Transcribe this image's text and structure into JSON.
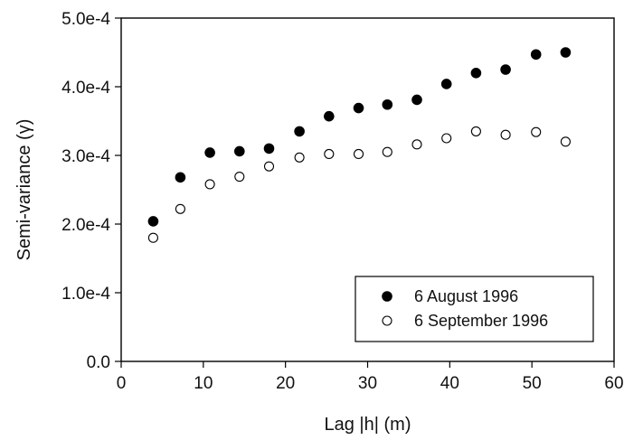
{
  "chart_data": {
    "type": "scatter",
    "title": "",
    "xlabel": "Lag |h| (m)",
    "ylabel": "Semi-variance (γ)",
    "xlim": [
      0,
      60
    ],
    "ylim": [
      0,
      0.0005
    ],
    "x_ticks": [
      0,
      10,
      20,
      30,
      40,
      50,
      60
    ],
    "x_tick_labels": [
      "0",
      "10",
      "20",
      "30",
      "40",
      "50",
      "60"
    ],
    "y_ticks": [
      0,
      0.0001,
      0.0002,
      0.0003,
      0.0004,
      0.0005
    ],
    "y_tick_labels": [
      "0.0",
      "1.0e-4",
      "2.0e-4",
      "3.0e-4",
      "4.0e-4",
      "5.0e-4"
    ],
    "grid": false,
    "legend_position": "bottom-right",
    "series": [
      {
        "name": "6 August 1996",
        "marker": "filled-circle",
        "color": "#000000",
        "x": [
          3.9,
          7.2,
          10.8,
          14.4,
          18.0,
          21.7,
          25.3,
          28.9,
          32.4,
          36.0,
          39.6,
          43.2,
          46.8,
          50.5,
          54.1
        ],
        "y": [
          0.000204,
          0.000268,
          0.000304,
          0.000306,
          0.00031,
          0.000335,
          0.000357,
          0.000369,
          0.000374,
          0.000381,
          0.000404,
          0.00042,
          0.000425,
          0.000447,
          0.00045
        ]
      },
      {
        "name": "6 September 1996",
        "marker": "open-circle",
        "color": "#000000",
        "x": [
          3.9,
          7.2,
          10.8,
          14.4,
          18.0,
          21.7,
          25.3,
          28.9,
          32.4,
          36.0,
          39.6,
          43.2,
          46.8,
          50.5,
          54.1
        ],
        "y": [
          0.00018,
          0.000222,
          0.000258,
          0.000269,
          0.000284,
          0.000297,
          0.000302,
          0.000302,
          0.000305,
          0.000316,
          0.000325,
          0.000335,
          0.00033,
          0.000334,
          0.00032
        ]
      }
    ]
  }
}
